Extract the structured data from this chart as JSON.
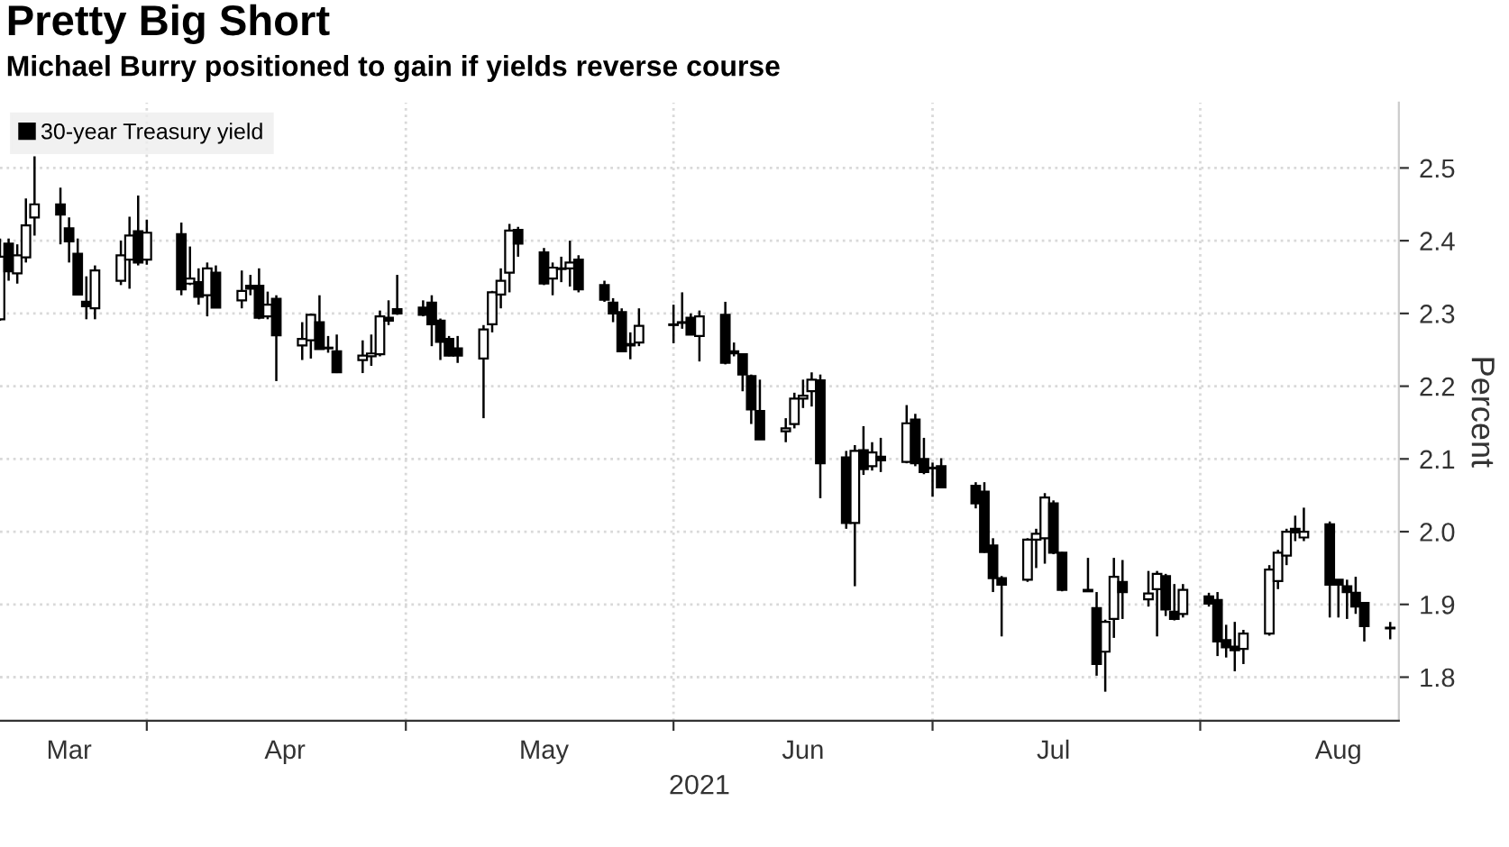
{
  "chart_data": {
    "type": "candlestick",
    "title": "Pretty Big Short",
    "subtitle": "Michael Burry positioned to gain if yields reverse course",
    "xlabel": "2021",
    "ylabel": "Percent",
    "xlim": [
      "2021-03-15",
      "2021-08-24"
    ],
    "xticks": [
      {
        "value": "2021-03-23",
        "label": "Mar"
      },
      {
        "value": "2021-04-01",
        "label": null
      },
      {
        "value": "2021-04-17",
        "label": "Apr"
      },
      {
        "value": "2021-05-01",
        "label": null
      },
      {
        "value": "2021-05-17",
        "label": "May"
      },
      {
        "value": "2021-06-01",
        "label": null
      },
      {
        "value": "2021-06-16",
        "label": "Jun"
      },
      {
        "value": "2021-07-01",
        "label": null
      },
      {
        "value": "2021-07-15",
        "label": "Jul"
      },
      {
        "value": "2021-08-01",
        "label": null
      },
      {
        "value": "2021-08-17",
        "label": "Aug"
      }
    ],
    "ylim": [
      1.74,
      2.59
    ],
    "yticks": [
      1.8,
      1.9,
      {
        "value": 2.0,
        "label": "2.0"
      },
      2.1,
      2.2,
      2.3,
      2.4,
      2.5
    ],
    "grid": true,
    "legend": "top left",
    "x": [
      "2021-03-15",
      "2021-03-16",
      "2021-03-17",
      "2021-03-18",
      "2021-03-19",
      "2021-03-22",
      "2021-03-23",
      "2021-03-24",
      "2021-03-25",
      "2021-03-26",
      "2021-03-29",
      "2021-03-30",
      "2021-03-31",
      "2021-04-01",
      "2021-04-05",
      "2021-04-06",
      "2021-04-07",
      "2021-04-08",
      "2021-04-09",
      "2021-04-12",
      "2021-04-13",
      "2021-04-14",
      "2021-04-15",
      "2021-04-16",
      "2021-04-19",
      "2021-04-20",
      "2021-04-21",
      "2021-04-22",
      "2021-04-23",
      "2021-04-26",
      "2021-04-27",
      "2021-04-28",
      "2021-04-29",
      "2021-04-30",
      "2021-05-03",
      "2021-05-04",
      "2021-05-05",
      "2021-05-06",
      "2021-05-07",
      "2021-05-10",
      "2021-05-11",
      "2021-05-12",
      "2021-05-13",
      "2021-05-14",
      "2021-05-17",
      "2021-05-18",
      "2021-05-19",
      "2021-05-20",
      "2021-05-21",
      "2021-05-24",
      "2021-05-25",
      "2021-05-26",
      "2021-05-27",
      "2021-05-28",
      "2021-06-01",
      "2021-06-02",
      "2021-06-03",
      "2021-06-04",
      "2021-06-07",
      "2021-06-08",
      "2021-06-09",
      "2021-06-10",
      "2021-06-11",
      "2021-06-14",
      "2021-06-15",
      "2021-06-16",
      "2021-06-17",
      "2021-06-18",
      "2021-06-21",
      "2021-06-22",
      "2021-06-23",
      "2021-06-24",
      "2021-06-25",
      "2021-06-28",
      "2021-06-29",
      "2021-06-30",
      "2021-07-01",
      "2021-07-02",
      "2021-07-06",
      "2021-07-07",
      "2021-07-08",
      "2021-07-09",
      "2021-07-12",
      "2021-07-13",
      "2021-07-14",
      "2021-07-15",
      "2021-07-16",
      "2021-07-19",
      "2021-07-20",
      "2021-07-21",
      "2021-07-22",
      "2021-07-23",
      "2021-07-26",
      "2021-07-27",
      "2021-07-28",
      "2021-07-29",
      "2021-07-30",
      "2021-08-02",
      "2021-08-03",
      "2021-08-04",
      "2021-08-05",
      "2021-08-06",
      "2021-08-09",
      "2021-08-10",
      "2021-08-11",
      "2021-08-12",
      "2021-08-13",
      "2021-08-16",
      "2021-08-17",
      "2021-08-18",
      "2021-08-19",
      "2021-08-20",
      "2021-08-23"
    ],
    "series": [
      {
        "name": "30-year Treasury yield",
        "color": "#000000",
        "ohlc": [
          [
            2.292,
            2.403,
            2.29,
            2.378
          ],
          [
            2.396,
            2.403,
            2.345,
            2.358
          ],
          [
            2.355,
            2.395,
            2.341,
            2.38
          ],
          [
            2.377,
            2.458,
            2.37,
            2.421
          ],
          [
            2.432,
            2.516,
            2.407,
            2.45
          ],
          [
            2.45,
            2.473,
            2.395,
            2.436
          ],
          [
            2.417,
            2.432,
            2.37,
            2.399
          ],
          [
            2.382,
            2.403,
            2.325,
            2.326
          ],
          [
            2.316,
            2.351,
            2.292,
            2.31
          ],
          [
            2.307,
            2.366,
            2.292,
            2.359
          ],
          [
            2.345,
            2.4,
            2.339,
            2.38
          ],
          [
            2.374,
            2.433,
            2.334,
            2.407
          ],
          [
            2.413,
            2.462,
            2.366,
            2.37
          ],
          [
            2.374,
            2.429,
            2.367,
            2.411
          ],
          [
            2.409,
            2.425,
            2.325,
            2.333
          ],
          [
            2.341,
            2.392,
            2.339,
            2.348
          ],
          [
            2.343,
            2.362,
            2.312,
            2.323
          ],
          [
            2.325,
            2.37,
            2.296,
            2.362
          ],
          [
            2.356,
            2.366,
            2.308,
            2.308
          ],
          [
            2.318,
            2.359,
            2.307,
            2.331
          ],
          [
            2.338,
            2.353,
            2.325,
            2.334
          ],
          [
            2.338,
            2.362,
            2.292,
            2.294
          ],
          [
            2.296,
            2.33,
            2.292,
            2.312
          ],
          [
            2.32,
            2.325,
            2.207,
            2.27
          ],
          [
            2.256,
            2.288,
            2.236,
            2.265
          ],
          [
            2.263,
            2.3,
            2.238,
            2.298
          ],
          [
            2.288,
            2.325,
            2.251,
            2.251
          ],
          [
            2.252,
            2.269,
            2.246,
            2.253
          ],
          [
            2.248,
            2.271,
            2.218,
            2.219
          ],
          [
            2.236,
            2.263,
            2.218,
            2.242
          ],
          [
            2.241,
            2.271,
            2.228,
            2.245
          ],
          [
            2.244,
            2.304,
            2.241,
            2.296
          ],
          [
            2.294,
            2.318,
            2.284,
            2.29
          ],
          [
            2.306,
            2.353,
            2.298,
            2.3
          ],
          [
            2.308,
            2.318,
            2.296,
            2.298
          ],
          [
            2.315,
            2.325,
            2.255,
            2.285
          ],
          [
            2.29,
            2.293,
            2.236,
            2.261
          ],
          [
            2.265,
            2.269,
            2.241,
            2.242
          ],
          [
            2.252,
            2.269,
            2.232,
            2.242
          ],
          [
            2.238,
            2.284,
            2.156,
            2.278
          ],
          [
            2.285,
            2.331,
            2.274,
            2.329
          ],
          [
            2.326,
            2.362,
            2.307,
            2.345
          ],
          [
            2.356,
            2.423,
            2.329,
            2.414
          ],
          [
            2.415,
            2.419,
            2.378,
            2.396
          ],
          [
            2.384,
            2.39,
            2.339,
            2.341
          ],
          [
            2.348,
            2.37,
            2.325,
            2.363
          ],
          [
            2.361,
            2.378,
            2.343,
            2.362
          ],
          [
            2.362,
            2.4,
            2.337,
            2.37
          ],
          [
            2.374,
            2.38,
            2.329,
            2.333
          ],
          [
            2.339,
            2.345,
            2.316,
            2.319
          ],
          [
            2.315,
            2.321,
            2.288,
            2.3
          ],
          [
            2.302,
            2.307,
            2.248,
            2.248
          ],
          [
            2.256,
            2.274,
            2.237,
            2.258
          ],
          [
            2.26,
            2.307,
            2.255,
            2.283
          ],
          [
            2.284,
            2.312,
            2.259,
            2.285
          ],
          [
            2.287,
            2.329,
            2.279,
            2.288
          ],
          [
            2.294,
            2.3,
            2.271,
            2.271
          ],
          [
            2.269,
            2.304,
            2.234,
            2.296
          ],
          [
            2.298,
            2.316,
            2.23,
            2.232
          ],
          [
            2.248,
            2.26,
            2.241,
            2.245
          ],
          [
            2.244,
            2.244,
            2.193,
            2.216
          ],
          [
            2.214,
            2.216,
            2.148,
            2.168
          ],
          [
            2.166,
            2.209,
            2.127,
            2.127
          ],
          [
            2.138,
            2.156,
            2.123,
            2.142
          ],
          [
            2.148,
            2.191,
            2.142,
            2.183
          ],
          [
            2.183,
            2.209,
            2.17,
            2.187
          ],
          [
            2.193,
            2.219,
            2.172,
            2.209
          ],
          [
            2.208,
            2.216,
            2.046,
            2.094
          ],
          [
            2.102,
            2.111,
            2.004,
            2.012
          ],
          [
            2.012,
            2.119,
            1.925,
            2.111
          ],
          [
            2.112,
            2.145,
            2.078,
            2.086
          ],
          [
            2.09,
            2.123,
            2.084,
            2.109
          ],
          [
            2.103,
            2.129,
            2.082,
            2.098
          ],
          [
            2.096,
            2.174,
            2.094,
            2.149
          ],
          [
            2.154,
            2.162,
            2.09,
            2.094
          ],
          [
            2.1,
            2.129,
            2.079,
            2.082
          ],
          [
            2.087,
            2.095,
            2.048,
            2.088
          ],
          [
            2.09,
            2.101,
            2.06,
            2.061
          ],
          [
            2.063,
            2.068,
            2.032,
            2.039
          ],
          [
            2.055,
            2.068,
            1.971,
            1.972
          ],
          [
            1.981,
            1.991,
            1.917,
            1.936
          ],
          [
            1.936,
            1.939,
            1.856,
            1.927
          ],
          [
            1.934,
            1.991,
            1.931,
            1.989
          ],
          [
            1.989,
            2.004,
            1.95,
            1.997
          ],
          [
            1.991,
            2.053,
            1.956,
            2.047
          ],
          [
            2.039,
            2.043,
            1.969,
            1.971
          ],
          [
            1.971,
            1.972,
            1.918,
            1.92
          ],
          [
            1.92,
            1.964,
            1.918,
            1.918
          ],
          [
            1.895,
            1.917,
            1.802,
            1.818
          ],
          [
            1.835,
            1.879,
            1.78,
            1.876
          ],
          [
            1.88,
            1.964,
            1.854,
            1.938
          ],
          [
            1.931,
            1.961,
            1.88,
            1.917
          ],
          [
            1.907,
            1.946,
            1.897,
            1.915
          ],
          [
            1.921,
            1.946,
            1.856,
            1.942
          ],
          [
            1.939,
            1.942,
            1.884,
            1.893
          ],
          [
            1.89,
            1.928,
            1.878,
            1.88
          ],
          [
            1.887,
            1.928,
            1.882,
            1.92
          ],
          [
            1.911,
            1.916,
            1.897,
            1.901
          ],
          [
            1.906,
            1.917,
            1.829,
            1.849
          ],
          [
            1.851,
            1.872,
            1.827,
            1.841
          ],
          [
            1.842,
            1.876,
            1.808,
            1.837
          ],
          [
            1.839,
            1.865,
            1.818,
            1.86
          ],
          [
            1.86,
            1.954,
            1.857,
            1.948
          ],
          [
            1.932,
            1.975,
            1.921,
            1.971
          ],
          [
            1.967,
            2.004,
            1.954,
            2.0
          ],
          [
            2.004,
            2.022,
            1.987,
            1.999
          ],
          [
            1.992,
            2.033,
            1.987,
            2.0
          ],
          [
            2.01,
            2.014,
            1.882,
            1.927
          ],
          [
            1.934,
            1.934,
            1.882,
            1.927
          ],
          [
            1.925,
            1.934,
            1.88,
            1.917
          ],
          [
            1.916,
            1.938,
            1.887,
            1.897
          ],
          [
            1.902,
            1.903,
            1.849,
            1.87
          ],
          [
            1.868,
            1.876,
            1.852,
            1.867
          ]
        ]
      }
    ]
  }
}
